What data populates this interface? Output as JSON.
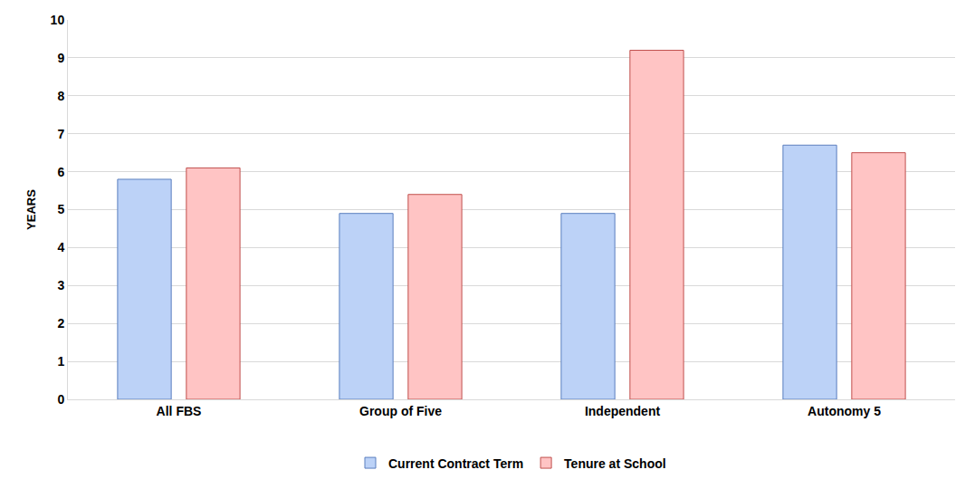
{
  "chart_data": {
    "type": "bar",
    "categories": [
      "All FBS",
      "Group of Five",
      "Independent",
      "Autonomy 5"
    ],
    "series": [
      {
        "name": "Current Contract Term",
        "color": "#bcd2f7",
        "values": [
          5.8,
          4.9,
          4.9,
          6.7
        ]
      },
      {
        "name": "Tenure at School",
        "color": "#ffc4c4",
        "values": [
          6.1,
          5.4,
          9.2,
          6.5
        ]
      }
    ],
    "y_label": "YEARS",
    "ylim": [
      0,
      10
    ],
    "yticks": [
      0,
      1,
      2,
      3,
      4,
      5,
      6,
      7,
      8,
      9,
      10
    ],
    "grid": true,
    "legend": "bottom"
  }
}
